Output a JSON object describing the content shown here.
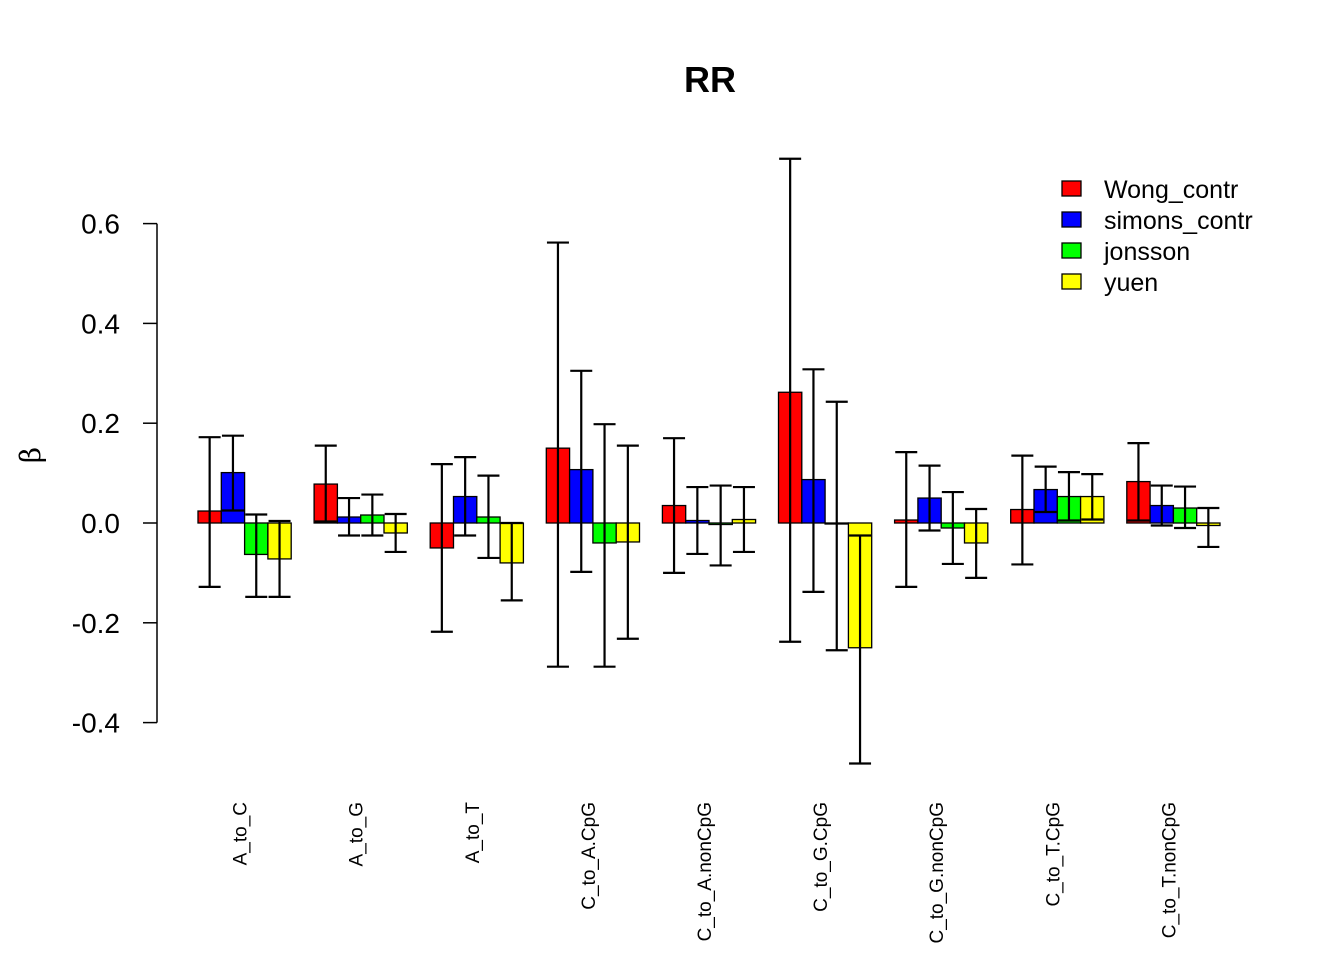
{
  "chart_data": {
    "type": "bar",
    "title": "RR",
    "xlabel": "",
    "ylabel": "β",
    "ylim": [
      -0.48,
      0.73
    ],
    "yticks": [
      0.6,
      0.4,
      0.2,
      0.0,
      -0.2,
      -0.4
    ],
    "ytick_labels": [
      "0.6",
      "0.4",
      "0.2",
      "0.0",
      "-0.2",
      "-0.4"
    ],
    "grid": false,
    "legend_position": "top-right",
    "categories": [
      "A_to_C",
      "A_to_G",
      "A_to_T",
      "C_to_A.CpG",
      "C_to_A.nonCpG",
      "C_to_G.CpG",
      "C_to_G.nonCpG",
      "C_to_T.CpG",
      "C_to_T.nonCpG"
    ],
    "series": [
      {
        "name": "Wong_contr",
        "color": "#ff0000",
        "values": [
          0.024,
          0.078,
          -0.05,
          0.15,
          0.035,
          0.262,
          0.006,
          0.027,
          0.083
        ],
        "err_low": [
          -0.128,
          0.003,
          -0.218,
          -0.288,
          -0.1,
          -0.238,
          -0.128,
          -0.083,
          0.005
        ],
        "err_high": [
          0.172,
          0.155,
          0.118,
          0.562,
          0.17,
          0.73,
          0.142,
          0.135,
          0.16
        ]
      },
      {
        "name": "simons_contr",
        "color": "#0000ff",
        "values": [
          0.101,
          0.012,
          0.053,
          0.107,
          0.005,
          0.087,
          0.05,
          0.067,
          0.035
        ],
        "err_low": [
          0.025,
          -0.025,
          -0.025,
          -0.098,
          -0.062,
          -0.138,
          -0.015,
          0.022,
          -0.005
        ],
        "err_high": [
          0.175,
          0.05,
          0.132,
          0.305,
          0.072,
          0.308,
          0.115,
          0.113,
          0.075
        ]
      },
      {
        "name": "jonsson",
        "color": "#00ff00",
        "values": [
          -0.063,
          0.016,
          0.012,
          -0.04,
          -0.003,
          -0.002,
          -0.01,
          0.053,
          0.03
        ],
        "err_low": [
          -0.148,
          -0.025,
          -0.07,
          -0.288,
          -0.085,
          -0.255,
          -0.082,
          0.005,
          -0.01
        ],
        "err_high": [
          0.017,
          0.057,
          0.095,
          0.198,
          0.075,
          0.243,
          0.062,
          0.102,
          0.073
        ]
      },
      {
        "name": "yuen",
        "color": "#ffff00",
        "values": [
          -0.072,
          -0.02,
          -0.08,
          -0.038,
          0.007,
          -0.25,
          -0.04,
          0.053,
          -0.005
        ],
        "err_low": [
          -0.148,
          -0.058,
          -0.155,
          -0.232,
          -0.058,
          -0.482,
          -0.11,
          0.007,
          -0.048
        ],
        "err_high": [
          0.004,
          0.018,
          0.0,
          0.155,
          0.072,
          -0.025,
          0.028,
          0.098,
          0.03
        ]
      }
    ]
  }
}
